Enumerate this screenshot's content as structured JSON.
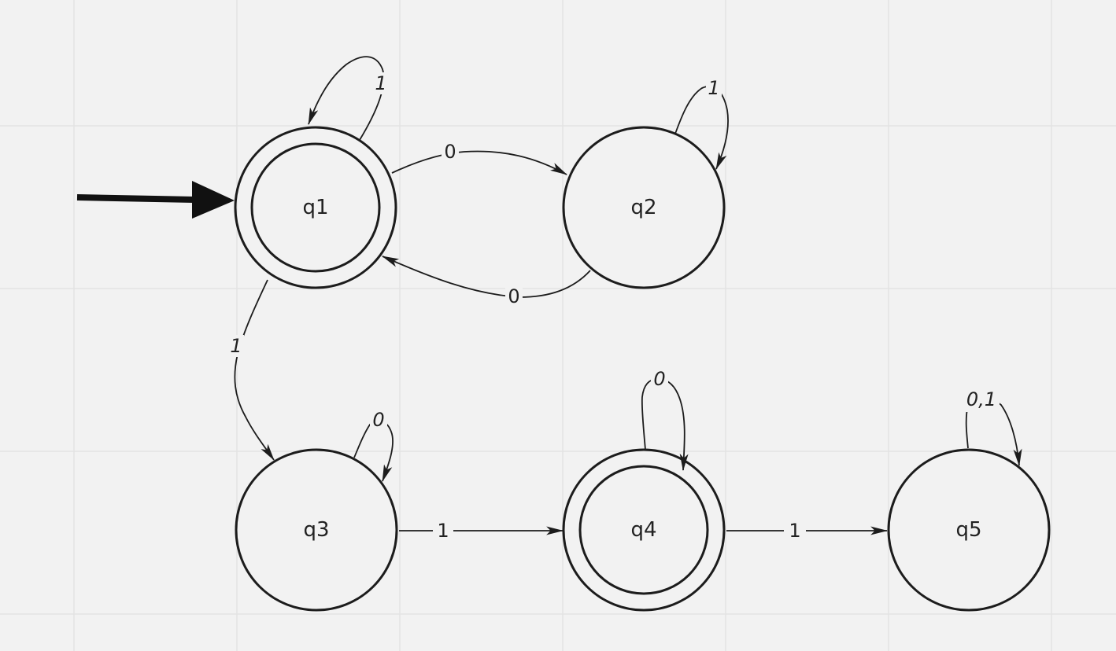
{
  "diagram": {
    "type": "finite-automaton",
    "start_state": "q1",
    "states": [
      {
        "id": "q1",
        "label": "q1",
        "accepting": true
      },
      {
        "id": "q2",
        "label": "q2",
        "accepting": false
      },
      {
        "id": "q3",
        "label": "q3",
        "accepting": false
      },
      {
        "id": "q4",
        "label": "q4",
        "accepting": true
      },
      {
        "id": "q5",
        "label": "q5",
        "accepting": false
      }
    ],
    "transitions": [
      {
        "id": "q1-q1",
        "from": "q1",
        "to": "q1",
        "label": "1"
      },
      {
        "id": "q1-q2",
        "from": "q1",
        "to": "q2",
        "label": "0"
      },
      {
        "id": "q2-q2",
        "from": "q2",
        "to": "q2",
        "label": "1"
      },
      {
        "id": "q2-q1",
        "from": "q2",
        "to": "q1",
        "label": "0"
      },
      {
        "id": "q1-q3",
        "from": "q1",
        "to": "q3",
        "label": "1"
      },
      {
        "id": "q3-q3",
        "from": "q3",
        "to": "q3",
        "label": "0"
      },
      {
        "id": "q3-q4",
        "from": "q3",
        "to": "q4",
        "label": "1"
      },
      {
        "id": "q4-q4",
        "from": "q4",
        "to": "q4",
        "label": "0"
      },
      {
        "id": "q4-q5",
        "from": "q4",
        "to": "q5",
        "label": "1"
      },
      {
        "id": "q5-q5",
        "from": "q5",
        "to": "q5",
        "label": "0,1"
      }
    ]
  }
}
